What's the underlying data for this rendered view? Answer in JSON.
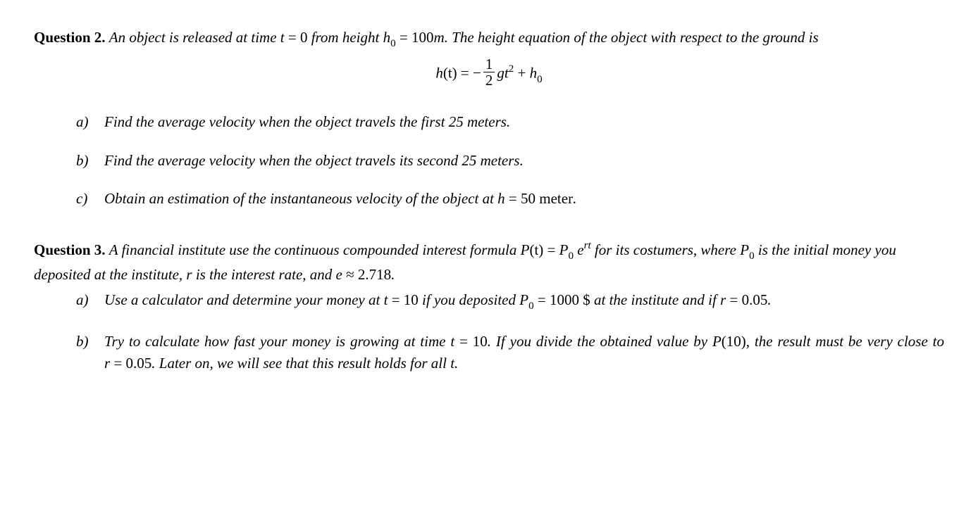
{
  "q2": {
    "heading": "Question 2.",
    "prompt_pre": "An object is released at time ",
    "t_equals": "t",
    "eq_sign": " = ",
    "t_zero": "0",
    "prompt_mid": " from height ",
    "h0_var": "h",
    "h0_sub": "0",
    "h0_eq": " = ",
    "h0_val": "100",
    "h0_unit": "m",
    "prompt_post": ".  The height equation of the object with respect to the ground is",
    "formula_lhs_h": "h",
    "formula_lhs_t": "(t)",
    "formula_eq": " = ",
    "formula_minus": "−",
    "frac_num": "1",
    "frac_den": "2",
    "formula_gt": "gt",
    "formula_sq": "2",
    "formula_plus": " + ",
    "formula_h0_h": "h",
    "formula_h0_0": "0",
    "parts": {
      "a": {
        "label": "a)",
        "text": "Find the average velocity when the object travels the first 25 meters."
      },
      "b": {
        "label": "b)",
        "text": "Find the average velocity when the object travels its second 25 meters."
      },
      "c": {
        "label": "c)",
        "text_pre": "Obtain an estimation of the instantaneous velocity of the object at ",
        "h_var": "h",
        "h_eq": " = ",
        "h_val": "50",
        "h_unit": " meter",
        "text_post": "."
      }
    }
  },
  "q3": {
    "heading": "Question 3.",
    "prompt_pre": "A financial institute use the continuous compounded interest formula ",
    "P": "P",
    "P_t": "(t)",
    "P_eq": " = ",
    "P0_P": "P",
    "P0_0": "0",
    "space": " ",
    "e": "e",
    "rt": "rt",
    "prompt_mid": " for its costumers, where ",
    "P0b_P": "P",
    "P0b_0": "0",
    "prompt_mid2": " is the initial money you deposited at the institute, ",
    "r_var": "r",
    "prompt_mid3": " is the interest rate, and ",
    "e2": "e",
    "approx": " ≈ ",
    "e_val": "2.718",
    "prompt_post": ".",
    "parts": {
      "a": {
        "label": "a)",
        "text_pre": "Use a calculator and determine your money at ",
        "t": "t",
        "t_eq": " = ",
        "t_val": "10",
        "text_mid": " if you deposited ",
        "P0_P": "P",
        "P0_0": "0",
        "P0_eq": " = ",
        "P0_val": "1000",
        "dollar": " $",
        "text_mid2": " at the institute and if ",
        "r": "r",
        "r_eq": " = ",
        "r_val": "0.05",
        "text_post": "."
      },
      "b": {
        "label": "b)",
        "text_pre": "Try to calculate how fast your money is growing at time ",
        "t": "t",
        "t_eq": " = ",
        "t_val": "10",
        "text_mid": ". If you divide the obtained value by ",
        "P10_P": "P",
        "P10_arg": "(10)",
        "text_mid2": ", the result must be very close to ",
        "r": "r",
        "r_eq": " = ",
        "r_val": "0.05",
        "text_mid3": ". Later on, we will see that this result holds for all ",
        "t2": "t",
        "text_post": "."
      }
    }
  }
}
